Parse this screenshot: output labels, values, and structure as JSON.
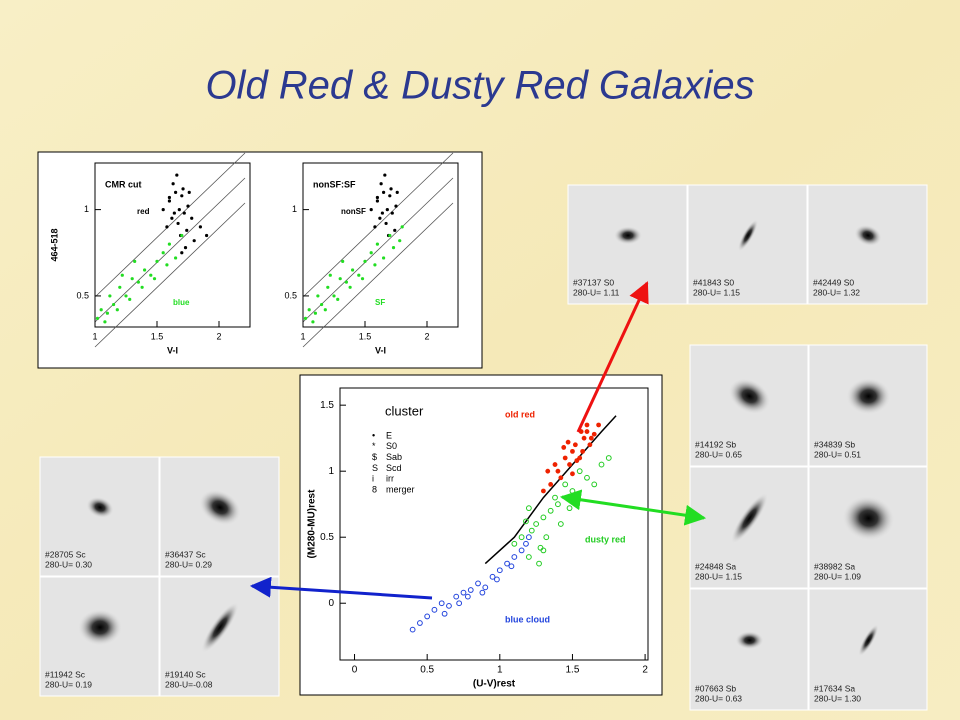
{
  "title": "Old Red & Dusty Red Galaxies",
  "chart_data": [
    {
      "type": "scatter",
      "title": "CMR cut",
      "xlabel": "V-I",
      "ylabel": "464-518",
      "xlim": [
        1,
        2.25
      ],
      "ylim": [
        0.32,
        1.27
      ],
      "xticks": [
        1,
        1.5,
        2
      ],
      "yticks": [
        0.5,
        1
      ],
      "series": [
        {
          "name": "red",
          "color": "#000000",
          "x": [
            1.55,
            1.6,
            1.62,
            1.65,
            1.68,
            1.7,
            1.72,
            1.75,
            1.58,
            1.63,
            1.67,
            1.71,
            1.74,
            1.78,
            1.6,
            1.66,
            1.69,
            1.73,
            1.8,
            1.85,
            1.64,
            1.7,
            1.76,
            1.9
          ],
          "values": [
            1.0,
            1.05,
            0.95,
            1.1,
            1.0,
            1.08,
            0.98,
            1.02,
            0.9,
            1.15,
            0.92,
            1.12,
            0.88,
            0.95,
            1.07,
            1.2,
            0.85,
            0.78,
            0.82,
            0.9,
            0.98,
            0.75,
            1.1,
            0.85
          ]
        },
        {
          "name": "blue",
          "color": "#22dd22",
          "x": [
            1.02,
            1.05,
            1.1,
            1.12,
            1.15,
            1.2,
            1.25,
            1.3,
            1.35,
            1.4,
            1.45,
            1.5,
            1.55,
            1.6,
            1.08,
            1.18,
            1.28,
            1.38,
            1.48,
            1.58,
            1.65,
            1.7,
            1.22,
            1.32
          ],
          "values": [
            0.37,
            0.42,
            0.4,
            0.5,
            0.45,
            0.55,
            0.5,
            0.6,
            0.58,
            0.65,
            0.62,
            0.7,
            0.75,
            0.8,
            0.35,
            0.42,
            0.48,
            0.55,
            0.6,
            0.68,
            0.72,
            0.85,
            0.62,
            0.7
          ]
        }
      ]
    },
    {
      "type": "scatter",
      "title": "nonSF:SF",
      "xlabel": "V-I",
      "xlim": [
        1,
        2.25
      ],
      "ylim": [
        0.32,
        1.27
      ],
      "xticks": [
        1,
        1.5,
        2
      ],
      "yticks": [
        0.5,
        1
      ],
      "series": [
        {
          "name": "nonSF",
          "color": "#000000",
          "x": [
            1.55,
            1.6,
            1.62,
            1.65,
            1.68,
            1.7,
            1.72,
            1.75,
            1.58,
            1.63,
            1.67,
            1.71,
            1.74,
            1.6,
            1.66,
            1.69,
            1.64,
            1.76
          ],
          "values": [
            1.0,
            1.05,
            0.95,
            1.1,
            1.0,
            1.08,
            0.98,
            1.02,
            0.9,
            1.15,
            0.92,
            1.12,
            0.88,
            1.07,
            1.2,
            0.85,
            0.98,
            1.1
          ]
        },
        {
          "name": "SF",
          "color": "#22dd22",
          "x": [
            1.02,
            1.05,
            1.1,
            1.12,
            1.15,
            1.2,
            1.25,
            1.3,
            1.35,
            1.4,
            1.45,
            1.5,
            1.55,
            1.6,
            1.08,
            1.18,
            1.28,
            1.38,
            1.48,
            1.58,
            1.65,
            1.7,
            1.22,
            1.32,
            1.73,
            1.78,
            1.8
          ],
          "values": [
            0.37,
            0.42,
            0.4,
            0.5,
            0.45,
            0.55,
            0.5,
            0.6,
            0.58,
            0.65,
            0.62,
            0.7,
            0.75,
            0.8,
            0.35,
            0.42,
            0.48,
            0.55,
            0.6,
            0.68,
            0.72,
            0.85,
            0.62,
            0.7,
            0.78,
            0.82,
            0.9
          ]
        }
      ]
    },
    {
      "type": "scatter",
      "xlabel": "(U-V)rest",
      "ylabel": "(M280-MU)rest",
      "xlim": [
        -0.1,
        2.02
      ],
      "ylim": [
        -0.43,
        1.63
      ],
      "xticks": [
        0,
        0.5,
        1,
        1.5,
        2
      ],
      "yticks": [
        0,
        0.5,
        1,
        1.5
      ],
      "legend": {
        "title": "cluster",
        "items": [
          {
            "symbol": "•",
            "label": "E"
          },
          {
            "symbol": "*",
            "label": "S0"
          },
          {
            "symbol": "$",
            "label": "Sab"
          },
          {
            "symbol": "S",
            "label": "Scd"
          },
          {
            "symbol": "i",
            "label": "irr"
          },
          {
            "symbol": "8",
            "label": "merger"
          }
        ]
      },
      "curve": {
        "x": [
          0.9,
          1.1,
          1.3,
          1.5,
          1.7,
          1.8
        ],
        "y": [
          0.3,
          0.5,
          0.8,
          1.05,
          1.3,
          1.42
        ],
        "color": "#000000"
      },
      "series": [
        {
          "name": "old red",
          "color": "#ee2200",
          "x": [
            1.3,
            1.35,
            1.4,
            1.42,
            1.45,
            1.48,
            1.5,
            1.52,
            1.55,
            1.58,
            1.6,
            1.62,
            1.65,
            1.38,
            1.44,
            1.5,
            1.56,
            1.6,
            1.33,
            1.47,
            1.53,
            1.57,
            1.63,
            1.68
          ],
          "values": [
            0.85,
            0.9,
            1.0,
            0.95,
            1.1,
            1.05,
            1.15,
            1.2,
            1.1,
            1.25,
            1.3,
            1.2,
            1.28,
            1.05,
            1.18,
            0.98,
            1.3,
            1.35,
            1.0,
            1.22,
            1.08,
            1.15,
            1.25,
            1.35
          ]
        },
        {
          "name": "dusty red",
          "color": "#22cc22",
          "x": [
            1.1,
            1.15,
            1.2,
            1.22,
            1.25,
            1.28,
            1.3,
            1.32,
            1.35,
            1.4,
            1.45,
            1.5,
            1.55,
            1.6,
            1.7,
            1.18,
            1.27,
            1.38,
            1.48,
            1.75,
            1.65,
            1.2,
            1.3,
            1.42
          ],
          "values": [
            0.45,
            0.5,
            0.35,
            0.55,
            0.6,
            0.42,
            0.65,
            0.5,
            0.7,
            0.75,
            0.9,
            0.85,
            1.0,
            0.95,
            1.05,
            0.62,
            0.3,
            0.8,
            0.72,
            1.1,
            0.9,
            0.72,
            0.4,
            0.6
          ]
        },
        {
          "name": "blue cloud",
          "color": "#2244dd",
          "x": [
            0.4,
            0.5,
            0.55,
            0.6,
            0.65,
            0.7,
            0.75,
            0.8,
            0.85,
            0.9,
            0.95,
            1.0,
            1.05,
            1.1,
            1.15,
            1.2,
            0.72,
            0.88,
            0.98,
            1.08,
            1.18,
            0.62,
            0.78,
            0.45
          ],
          "values": [
            -0.2,
            -0.1,
            -0.05,
            0.0,
            -0.02,
            0.05,
            0.08,
            0.1,
            0.15,
            0.12,
            0.2,
            0.25,
            0.3,
            0.35,
            0.4,
            0.5,
            0.0,
            0.08,
            0.18,
            0.28,
            0.45,
            -0.08,
            0.05,
            -0.15
          ]
        }
      ]
    }
  ],
  "thumbnails": {
    "top": [
      [
        "#37137  S0",
        "280-U=  1.11"
      ],
      [
        "#41843  S0",
        "280-U=  1.15"
      ],
      [
        "#42449  S0",
        "280-U=  1.32"
      ]
    ],
    "right": [
      [
        "#14192  Sb",
        "280-U=  0.65"
      ],
      [
        "#34839  Sb",
        "280-U=  0.51"
      ],
      [
        "#24848  Sa",
        "280-U=  1.15"
      ],
      [
        "#38982  Sa",
        "280-U=  1.09"
      ],
      [
        "#07663  Sb",
        "280-U=  0.63"
      ],
      [
        "#17634  Sa",
        "280-U=  1.30"
      ]
    ],
    "left": [
      [
        "#28705  Sc",
        "280-U=  0.30"
      ],
      [
        "#36437  Sc",
        "280-U=  0.29"
      ],
      [
        "#11942  Sc",
        "280-U=  0.19"
      ],
      [
        "#19140  Sc",
        "280-U=-0.08"
      ]
    ]
  }
}
